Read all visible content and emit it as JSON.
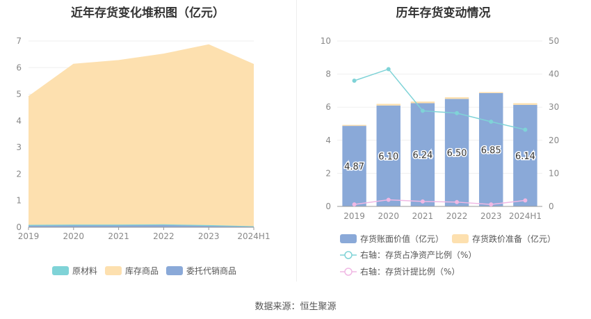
{
  "chart_data": [
    {
      "type": "area",
      "title": "近年存货变化堆积图（亿元）",
      "categories": [
        "2019",
        "2020",
        "2021",
        "2022",
        "2023",
        "2024H1"
      ],
      "series": [
        {
          "name": "原材料",
          "values": [
            0.03,
            0.03,
            0.03,
            0.03,
            0.03,
            0.02
          ],
          "color": "#7fd3d7"
        },
        {
          "name": "库存商品",
          "values": [
            4.82,
            6.03,
            6.17,
            6.4,
            6.78,
            6.08
          ],
          "color": "#fde0af"
        },
        {
          "name": "委托代销商品",
          "values": [
            0.06,
            0.07,
            0.07,
            0.08,
            0.05,
            0.02
          ],
          "color": "#8aa9d8"
        }
      ],
      "stack_order": [
        "委托代销商品",
        "原材料",
        "库存商品"
      ],
      "ylim": [
        0,
        7
      ],
      "yticks": [
        "0",
        "1",
        "2",
        "3",
        "4",
        "5",
        "6",
        "7"
      ],
      "grid": true,
      "legend": "bottom"
    },
    {
      "type": "bar",
      "title": "历年存货变动情况",
      "categories": [
        "2019",
        "2020",
        "2021",
        "2022",
        "2023",
        "2024H1"
      ],
      "series": [
        {
          "name": "存货账面价值（亿元）",
          "values": [
            4.87,
            6.1,
            6.24,
            6.5,
            6.85,
            6.14
          ],
          "labels": [
            "4.87",
            "6.10",
            "6.24",
            "6.50",
            "6.85",
            "6.14"
          ],
          "color": "#8aa9d8",
          "axis": "left"
        },
        {
          "name": "存货跌价准备（亿元）",
          "values": [
            0.06,
            0.1,
            0.1,
            0.1,
            0.06,
            0.1
          ],
          "color": "#fde0af",
          "axis": "left"
        }
      ],
      "line_series": [
        {
          "name": "右轴：存货占净资产比例（%）",
          "values": [
            38.0,
            41.5,
            28.9,
            28.2,
            25.6,
            23.2
          ],
          "color": "#7fd3d7",
          "axis": "right"
        },
        {
          "name": "右轴：存货计提比例（%）",
          "values": [
            0.6,
            2.0,
            1.5,
            1.3,
            0.6,
            1.8
          ],
          "color": "#f0b8e4",
          "axis": "right"
        }
      ],
      "ylim_left": [
        0,
        10
      ],
      "ylim_right": [
        0,
        50
      ],
      "yticks_left": [
        "0",
        "2",
        "4",
        "6",
        "8",
        "10"
      ],
      "yticks_right": [
        "0",
        "10",
        "20",
        "30",
        "40",
        "50"
      ],
      "grid": true,
      "legend": "bottom"
    }
  ],
  "source": "数据来源：恒生聚源"
}
